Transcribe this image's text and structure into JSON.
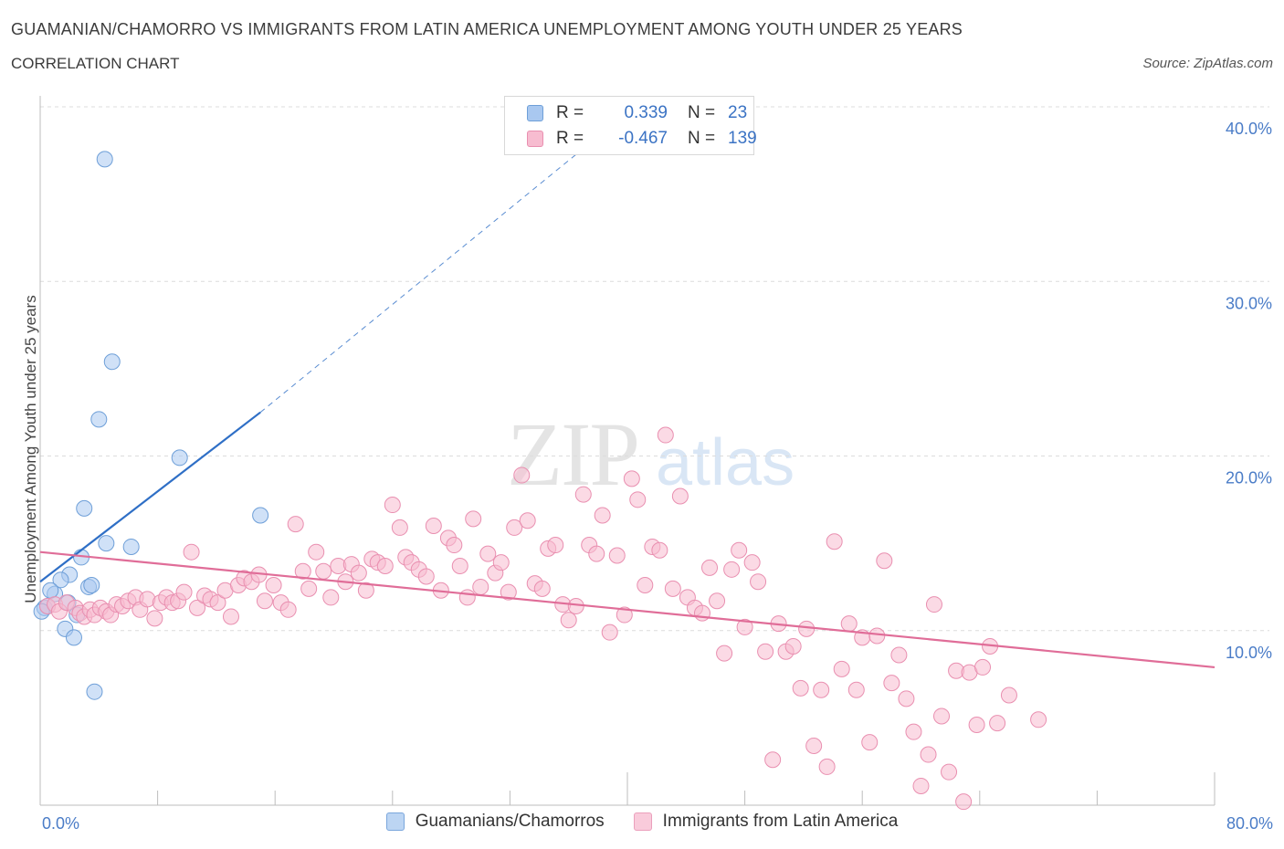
{
  "title": "GUAMANIAN/CHAMORRO VS IMMIGRANTS FROM LATIN AMERICA UNEMPLOYMENT AMONG YOUTH UNDER 25 YEARS",
  "subtitle": "CORRELATION CHART",
  "source": "Source: ZipAtlas.com",
  "watermark": {
    "zip": "ZIP",
    "atlas": "atlas"
  },
  "legend_stats": [
    {
      "r_label": "R =",
      "r_value": "0.339",
      "n_label": "N =",
      "n_value": "23",
      "color": "#a9c8f0",
      "border": "#6e9fd8"
    },
    {
      "r_label": "R =",
      "r_value": "-0.467",
      "n_label": "N =",
      "n_value": "139",
      "color": "#f7bcd0",
      "border": "#e98fb0"
    }
  ],
  "chart_data": {
    "type": "scatter",
    "title": "GUAMANIAN/CHAMORRO VS IMMIGRANTS FROM LATIN AMERICA UNEMPLOYMENT AMONG YOUTH UNDER 25 YEARS",
    "ylabel": "Unemployment Among Youth under 25 years",
    "xlabel": "",
    "xlim": [
      0,
      80
    ],
    "ylim": [
      0,
      40
    ],
    "x_tick_labels": [
      {
        "value": 0,
        "label": "0.0%"
      },
      {
        "value": 80,
        "label": "80.0%"
      }
    ],
    "y_tick_labels": [
      {
        "value": 10,
        "label": "10.0%"
      },
      {
        "value": 20,
        "label": "20.0%"
      },
      {
        "value": 30,
        "label": "30.0%"
      },
      {
        "value": 40,
        "label": "40.0%"
      }
    ],
    "grid": true,
    "legend_position": "bottom",
    "series": [
      {
        "name": "Guamanians/Chamorros",
        "color": "#a9c8f0",
        "edge": "#6e9fd8",
        "trend": {
          "x": [
            0,
            15
          ],
          "y": [
            12.8,
            22.5
          ],
          "color": "#2f6fc6",
          "dashed_to": [
            38,
            38.3
          ]
        },
        "points": [
          [
            4.4,
            37.0
          ],
          [
            4.9,
            25.4
          ],
          [
            4.0,
            22.1
          ],
          [
            9.5,
            19.9
          ],
          [
            3.0,
            17.0
          ],
          [
            15.0,
            16.6
          ],
          [
            4.5,
            15.0
          ],
          [
            6.2,
            14.8
          ],
          [
            2.8,
            14.2
          ],
          [
            2.0,
            13.2
          ],
          [
            1.4,
            12.9
          ],
          [
            3.3,
            12.5
          ],
          [
            3.5,
            12.6
          ],
          [
            1.0,
            12.1
          ],
          [
            0.7,
            12.3
          ],
          [
            1.9,
            11.6
          ],
          [
            0.3,
            11.3
          ],
          [
            0.5,
            11.4
          ],
          [
            2.5,
            10.9
          ],
          [
            1.7,
            10.1
          ],
          [
            2.3,
            9.6
          ],
          [
            3.7,
            6.5
          ],
          [
            0.1,
            11.1
          ]
        ]
      },
      {
        "name": "Immigrants from Latin America",
        "color": "#f7bcd0",
        "edge": "#e98fb0",
        "trend": {
          "x": [
            0,
            80
          ],
          "y": [
            14.5,
            7.9
          ],
          "color": "#e06d98"
        },
        "points": [
          [
            0.5,
            11.4
          ],
          [
            1.0,
            11.5
          ],
          [
            1.3,
            11.1
          ],
          [
            1.8,
            11.6
          ],
          [
            2.4,
            11.3
          ],
          [
            2.7,
            11.0
          ],
          [
            3.0,
            10.8
          ],
          [
            3.4,
            11.2
          ],
          [
            3.7,
            10.9
          ],
          [
            4.1,
            11.3
          ],
          [
            4.5,
            11.1
          ],
          [
            4.8,
            10.9
          ],
          [
            5.2,
            11.5
          ],
          [
            5.6,
            11.4
          ],
          [
            6.0,
            11.7
          ],
          [
            6.5,
            11.9
          ],
          [
            6.8,
            11.2
          ],
          [
            7.3,
            11.8
          ],
          [
            7.8,
            10.7
          ],
          [
            8.2,
            11.6
          ],
          [
            8.6,
            11.9
          ],
          [
            9.0,
            11.6
          ],
          [
            9.4,
            11.7
          ],
          [
            9.8,
            12.2
          ],
          [
            10.3,
            14.5
          ],
          [
            10.7,
            11.3
          ],
          [
            11.2,
            12.0
          ],
          [
            11.6,
            11.8
          ],
          [
            12.1,
            11.6
          ],
          [
            12.6,
            12.3
          ],
          [
            13.0,
            10.8
          ],
          [
            13.5,
            12.6
          ],
          [
            13.9,
            13.0
          ],
          [
            14.4,
            12.8
          ],
          [
            14.9,
            13.2
          ],
          [
            15.3,
            11.7
          ],
          [
            15.9,
            12.6
          ],
          [
            16.4,
            11.6
          ],
          [
            16.9,
            11.2
          ],
          [
            17.4,
            16.1
          ],
          [
            17.9,
            13.4
          ],
          [
            18.3,
            12.4
          ],
          [
            18.8,
            14.5
          ],
          [
            19.3,
            13.4
          ],
          [
            19.8,
            11.9
          ],
          [
            20.3,
            13.7
          ],
          [
            20.8,
            12.8
          ],
          [
            21.2,
            13.8
          ],
          [
            21.7,
            13.3
          ],
          [
            22.2,
            12.3
          ],
          [
            22.6,
            14.1
          ],
          [
            23.0,
            13.9
          ],
          [
            23.5,
            13.7
          ],
          [
            24.0,
            17.2
          ],
          [
            24.5,
            15.9
          ],
          [
            24.9,
            14.2
          ],
          [
            25.3,
            13.9
          ],
          [
            25.8,
            13.5
          ],
          [
            26.3,
            13.1
          ],
          [
            26.8,
            16.0
          ],
          [
            27.3,
            12.3
          ],
          [
            27.8,
            15.3
          ],
          [
            28.2,
            14.9
          ],
          [
            28.6,
            13.7
          ],
          [
            29.1,
            11.9
          ],
          [
            29.5,
            16.4
          ],
          [
            30.0,
            12.5
          ],
          [
            30.5,
            14.4
          ],
          [
            31.0,
            13.3
          ],
          [
            31.4,
            13.9
          ],
          [
            31.9,
            12.2
          ],
          [
            32.3,
            15.9
          ],
          [
            32.8,
            18.9
          ],
          [
            33.2,
            16.3
          ],
          [
            33.7,
            12.7
          ],
          [
            34.2,
            12.4
          ],
          [
            34.6,
            14.7
          ],
          [
            35.1,
            14.9
          ],
          [
            35.6,
            11.5
          ],
          [
            36.0,
            10.6
          ],
          [
            36.5,
            11.4
          ],
          [
            37.0,
            17.8
          ],
          [
            37.4,
            14.9
          ],
          [
            37.9,
            14.4
          ],
          [
            38.3,
            16.6
          ],
          [
            38.8,
            9.9
          ],
          [
            39.3,
            14.3
          ],
          [
            39.8,
            10.9
          ],
          [
            40.3,
            18.7
          ],
          [
            40.7,
            17.5
          ],
          [
            41.2,
            12.6
          ],
          [
            41.7,
            14.8
          ],
          [
            42.2,
            14.6
          ],
          [
            42.6,
            21.2
          ],
          [
            43.1,
            12.4
          ],
          [
            43.6,
            17.7
          ],
          [
            44.1,
            11.9
          ],
          [
            44.6,
            11.3
          ],
          [
            45.1,
            11.0
          ],
          [
            45.6,
            13.6
          ],
          [
            46.1,
            11.7
          ],
          [
            46.6,
            8.7
          ],
          [
            47.1,
            13.5
          ],
          [
            47.6,
            14.6
          ],
          [
            48.0,
            10.2
          ],
          [
            48.5,
            13.9
          ],
          [
            48.9,
            12.8
          ],
          [
            49.4,
            8.8
          ],
          [
            49.9,
            2.6
          ],
          [
            50.3,
            10.4
          ],
          [
            50.8,
            8.8
          ],
          [
            51.3,
            9.1
          ],
          [
            51.8,
            6.7
          ],
          [
            52.2,
            10.1
          ],
          [
            52.7,
            3.4
          ],
          [
            53.2,
            6.6
          ],
          [
            53.6,
            2.2
          ],
          [
            54.1,
            15.1
          ],
          [
            54.6,
            7.8
          ],
          [
            55.1,
            10.4
          ],
          [
            55.6,
            6.6
          ],
          [
            56.0,
            9.6
          ],
          [
            56.5,
            3.6
          ],
          [
            57.0,
            9.7
          ],
          [
            57.5,
            14.0
          ],
          [
            58.0,
            7.0
          ],
          [
            58.5,
            8.6
          ],
          [
            59.0,
            6.1
          ],
          [
            59.5,
            4.2
          ],
          [
            60.0,
            1.1
          ],
          [
            60.5,
            2.9
          ],
          [
            60.9,
            11.5
          ],
          [
            61.4,
            5.1
          ],
          [
            61.9,
            1.9
          ],
          [
            62.4,
            7.7
          ],
          [
            62.9,
            0.2
          ],
          [
            63.3,
            7.6
          ],
          [
            63.8,
            4.6
          ],
          [
            64.2,
            7.9
          ],
          [
            64.7,
            9.1
          ],
          [
            65.2,
            4.7
          ],
          [
            66.0,
            6.3
          ],
          [
            68.0,
            4.9
          ]
        ]
      }
    ]
  }
}
